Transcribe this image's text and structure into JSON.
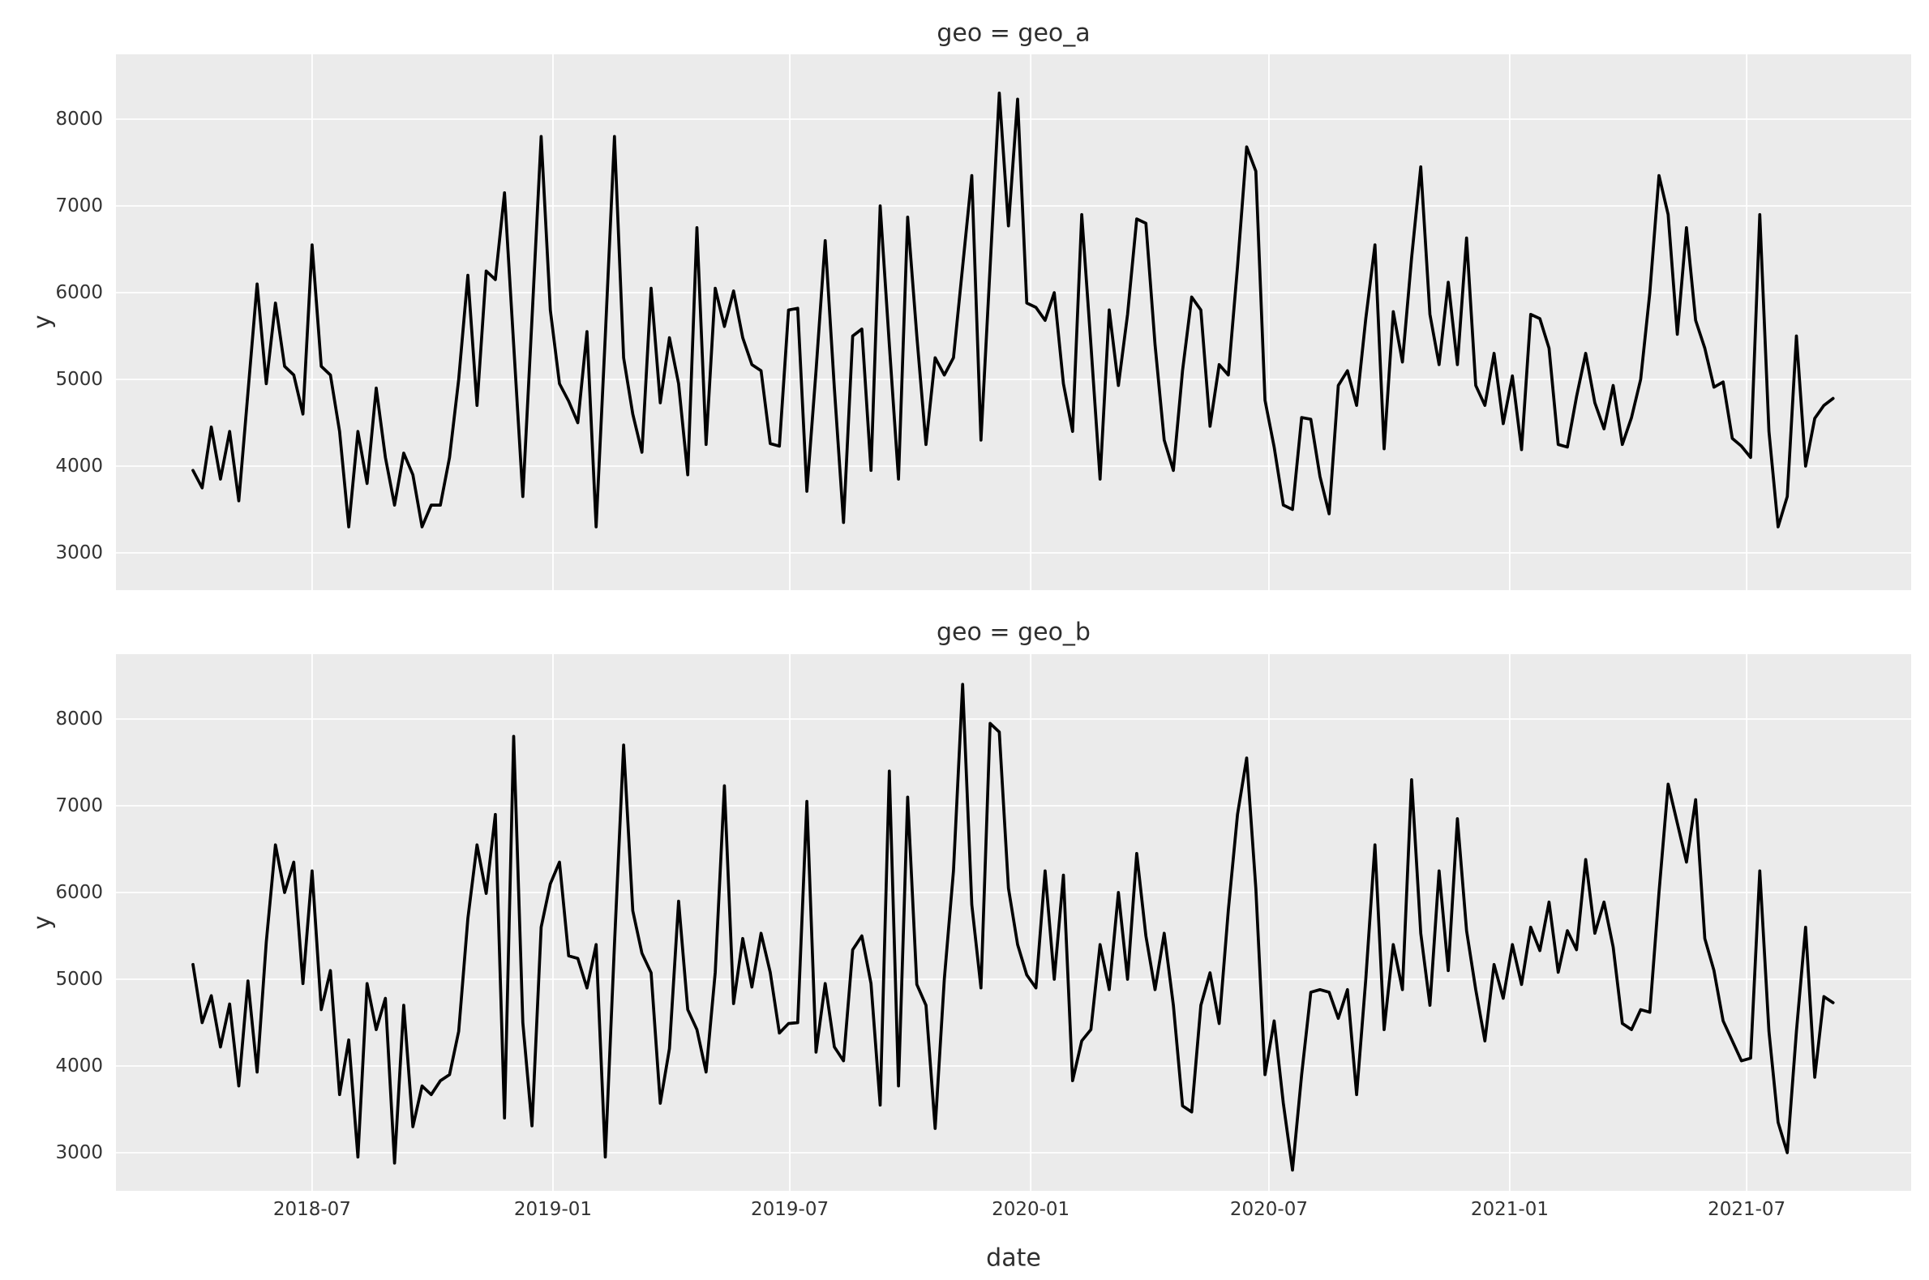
{
  "colors": {
    "line": "#000000",
    "panel_bg": "#ebebeb",
    "grid": "#ffffff",
    "text": "#333333"
  },
  "chart_data": {
    "type": "line",
    "facet_variable": "geo",
    "xlabel": "date",
    "x": {
      "start_date": "2018-04-01",
      "frequency": "weekly",
      "n_points": 180,
      "tick_labels": [
        "2018-07",
        "2019-01",
        "2019-07",
        "2020-01",
        "2020-07",
        "2021-01",
        "2021-07"
      ],
      "tick_week_positions": [
        13.0,
        39.29,
        65.14,
        91.43,
        117.43,
        143.71,
        169.57
      ]
    },
    "y": {
      "label": "y",
      "ticks": [
        3000,
        4000,
        5000,
        6000,
        7000,
        8000
      ],
      "ylim": [
        2450,
        8950
      ]
    },
    "grid": true,
    "legend": false,
    "facets": [
      {
        "title": "geo = geo_a",
        "name": "geo_a",
        "values": [
          3950,
          3750,
          4450,
          3850,
          4400,
          3600,
          4850,
          6100,
          4950,
          5880,
          5150,
          5050,
          4600,
          6550,
          5150,
          5050,
          4400,
          3300,
          4400,
          3800,
          4900,
          4100,
          3550,
          4150,
          3900,
          3300,
          3550,
          3550,
          4100,
          5000,
          6200,
          4700,
          6250,
          6150,
          7150,
          5400,
          3650,
          5700,
          7800,
          5800,
          4950,
          4750,
          4500,
          5550,
          3300,
          5500,
          7800,
          5250,
          4600,
          4160,
          6050,
          4730,
          5480,
          4950,
          3900,
          6750,
          4250,
          6050,
          5610,
          6020,
          5480,
          5170,
          5100,
          4260,
          4230,
          5800,
          5820,
          3710,
          5100,
          6600,
          4900,
          3350,
          5500,
          5580,
          3950,
          7000,
          5400,
          3850,
          6870,
          5500,
          4250,
          5250,
          5050,
          5250,
          6300,
          7350,
          4300,
          6300,
          8300,
          6770,
          8230,
          5880,
          5830,
          5680,
          6000,
          4950,
          4400,
          6900,
          5400,
          3850,
          5800,
          4930,
          5750,
          6850,
          6800,
          5400,
          4300,
          3950,
          5100,
          5950,
          5800,
          4460,
          5170,
          5050,
          6300,
          7680,
          7400,
          4760,
          4220,
          3550,
          3500,
          4560,
          4540,
          3880,
          3450,
          4930,
          5100,
          4700,
          5700,
          6550,
          4200,
          5780,
          5200,
          6400,
          7450,
          5750,
          5170,
          6120,
          5170,
          6630,
          4930,
          4700,
          5300,
          4490,
          5040,
          4190,
          5750,
          5700,
          5360,
          4250,
          4220,
          4800,
          5300,
          4730,
          4430,
          4930,
          4250,
          4560,
          5000,
          6000,
          7350,
          6900,
          5520,
          6750,
          5680,
          5360,
          4910,
          4970,
          4320,
          4230,
          4100,
          6900,
          4400,
          3300,
          3650,
          5500,
          4000,
          4550,
          4700,
          4780
        ]
      },
      {
        "title": "geo = geo_b",
        "name": "geo_b",
        "values": [
          5170,
          4500,
          4810,
          4220,
          4715,
          3770,
          4980,
          3930,
          5430,
          6550,
          6000,
          6350,
          4950,
          6250,
          4650,
          5100,
          3670,
          4300,
          2950,
          4950,
          4420,
          4780,
          2880,
          4700,
          3300,
          3770,
          3670,
          3830,
          3900,
          4400,
          5700,
          6550,
          5990,
          6900,
          3400,
          7800,
          4500,
          3310,
          5600,
          6100,
          6350,
          5270,
          5240,
          4900,
          5400,
          2950,
          5400,
          7700,
          5790,
          5300,
          5075,
          3570,
          4200,
          5900,
          4650,
          4420,
          3930,
          5080,
          7230,
          4720,
          5470,
          4910,
          5530,
          5080,
          4380,
          4490,
          4500,
          7050,
          4160,
          4950,
          4220,
          4060,
          5340,
          5500,
          4950,
          3550,
          7400,
          3770,
          7100,
          4940,
          4700,
          3280,
          5000,
          6250,
          8400,
          5860,
          4900,
          7950,
          7850,
          6050,
          5400,
          5050,
          4900,
          6250,
          5000,
          6200,
          3830,
          4290,
          4420,
          5400,
          4880,
          6000,
          5000,
          6450,
          5500,
          4880,
          5530,
          4700,
          3540,
          3470,
          4700,
          5075,
          4490,
          5800,
          6900,
          7550,
          6050,
          3900,
          4520,
          3570,
          2800,
          3900,
          4850,
          4880,
          4850,
          4550,
          4880,
          3670,
          5000,
          6550,
          4420,
          5400,
          4880,
          7300,
          5530,
          4700,
          6250,
          5100,
          6850,
          5560,
          4880,
          4290,
          5170,
          4780,
          5400,
          4940,
          5600,
          5330,
          5890,
          5080,
          5560,
          5340,
          6380,
          5530,
          5890,
          5370,
          4490,
          4420,
          4650,
          4620,
          6000,
          7250,
          6800,
          6350,
          7070,
          5470,
          5100,
          4520,
          4290,
          4060,
          4090,
          6250,
          4400,
          3350,
          3000,
          4400,
          5600,
          3870,
          4800,
          4730
        ]
      }
    ]
  }
}
